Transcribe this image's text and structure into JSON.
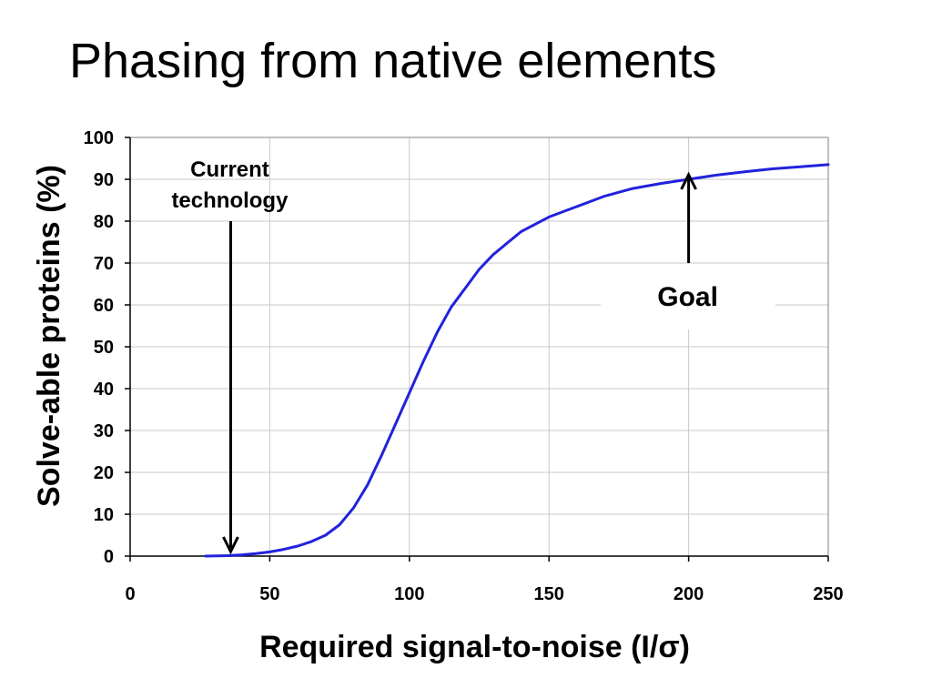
{
  "slide": {
    "title": "Phasing from native elements"
  },
  "chart_data": {
    "type": "line",
    "title": "",
    "xlabel": "Required signal-to-noise (I/σ)",
    "ylabel": "Solve-able proteins (%)",
    "xlim": [
      0,
      250
    ],
    "ylim": [
      0,
      100
    ],
    "xticks": [
      0,
      50,
      100,
      150,
      200,
      250
    ],
    "yticks": [
      0,
      10,
      20,
      30,
      40,
      50,
      60,
      70,
      80,
      90,
      100
    ],
    "grid": true,
    "legend": "none",
    "series": [
      {
        "color": "#2222dd",
        "x": [
          27,
          35,
          40,
          45,
          50,
          55,
          60,
          65,
          70,
          75,
          80,
          85,
          90,
          95,
          100,
          105,
          110,
          115,
          120,
          125,
          130,
          140,
          150,
          160,
          170,
          180,
          190,
          200,
          210,
          220,
          230,
          240,
          250
        ],
        "y": [
          0,
          0.1,
          0.3,
          0.6,
          1,
          1.6,
          2.4,
          3.5,
          5,
          7.5,
          11.5,
          17,
          24,
          31.5,
          39,
          46.5,
          53.5,
          59.5,
          64,
          68.5,
          72,
          77.5,
          81,
          83.5,
          86,
          87.8,
          89,
          90,
          91,
          91.8,
          92.5,
          93,
          93.5
        ]
      }
    ],
    "annotations": [
      {
        "name": "current-technology",
        "text_lines": [
          "Current",
          "technology"
        ],
        "arrow_x": 36,
        "arrow_tip_y": 0,
        "arrow_tail_y": 80
      },
      {
        "name": "goal",
        "text_lines": [
          "Goal"
        ],
        "arrow_x": 200,
        "arrow_tip_y": 90,
        "arrow_tail_y": 70
      }
    ]
  }
}
